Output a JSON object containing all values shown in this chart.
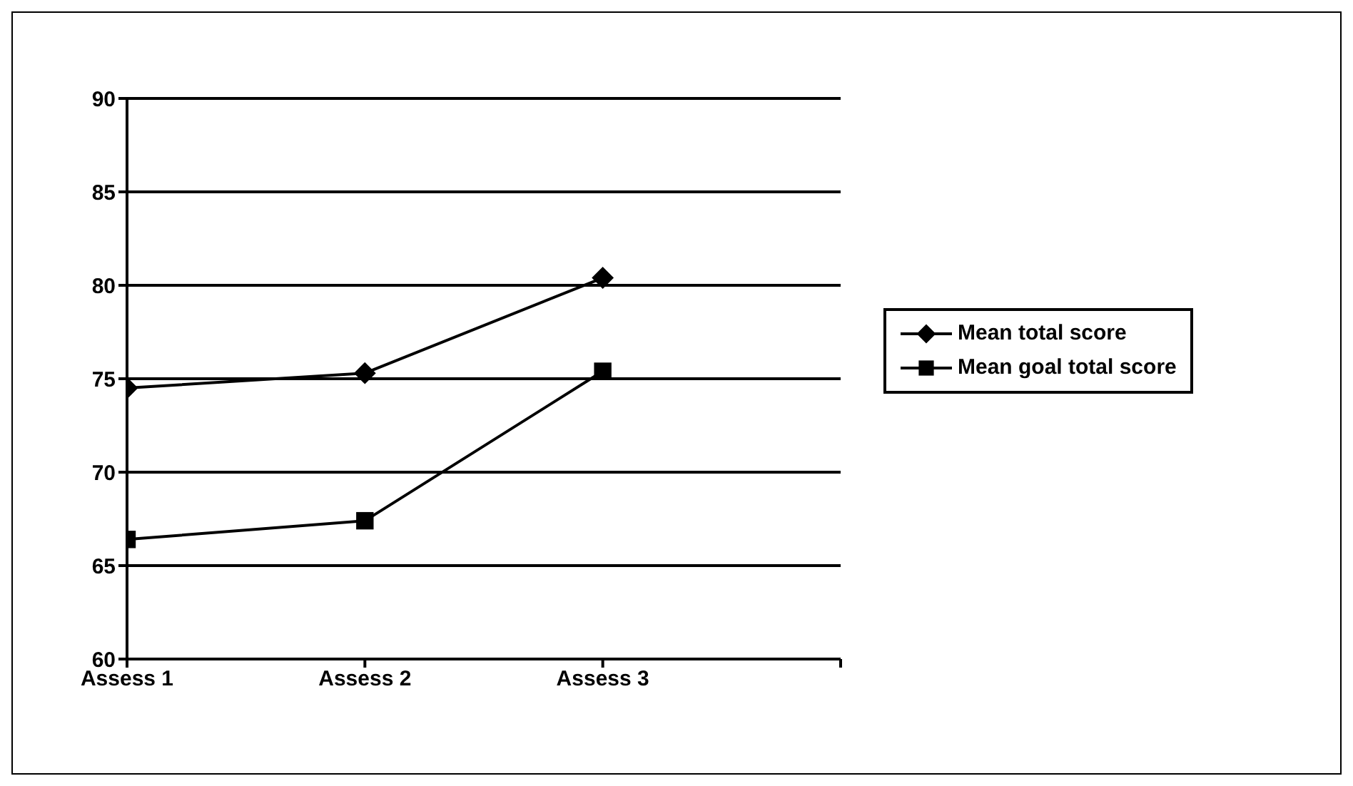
{
  "chart_data": {
    "type": "line",
    "categories": [
      "Assess 1",
      "Assess 2",
      "Assess 3"
    ],
    "series": [
      {
        "name": "Mean total score",
        "color": "#000000",
        "marker": "diamond",
        "values": [
          74.5,
          75.3,
          80.4
        ]
      },
      {
        "name": "Mean goal total score",
        "color": "#000000",
        "marker": "square",
        "values": [
          66.4,
          67.4,
          75.4
        ]
      }
    ],
    "ylim": [
      60,
      90
    ],
    "yticks": [
      60,
      65,
      70,
      75,
      80,
      85,
      90
    ],
    "grid": "y",
    "legend": "right",
    "line_style": "solid"
  }
}
